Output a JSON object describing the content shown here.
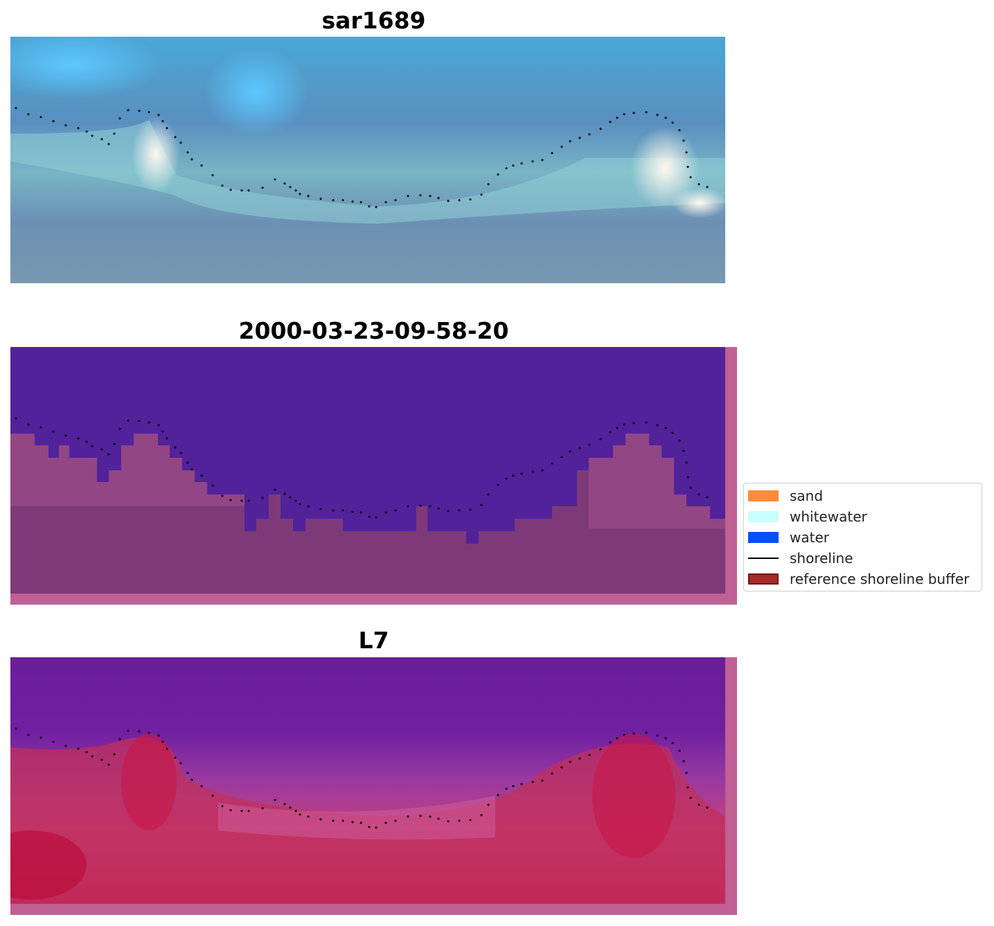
{
  "panels": [
    {
      "title": "sar1689",
      "kind": "rgb"
    },
    {
      "title": "2000-03-23-09-58-20",
      "kind": "classification"
    },
    {
      "title": "L7",
      "kind": "index"
    }
  ],
  "legend": {
    "items": [
      {
        "label": "sand",
        "color": "#ff8c3a",
        "type": "patch"
      },
      {
        "label": "whitewater",
        "color": "#c8ffff",
        "type": "patch"
      },
      {
        "label": "water",
        "color": "#0050ff",
        "type": "patch"
      },
      {
        "label": "shoreline",
        "color": "#000000",
        "type": "line"
      },
      {
        "label": "reference shoreline buffer",
        "color": "#a52a2a",
        "type": "patch"
      }
    ]
  },
  "colors": {
    "class_water": "#52229a",
    "class_land": "#7e3a78",
    "buffer_overlay": "#c06094",
    "shoreline_dots": "#000000"
  }
}
